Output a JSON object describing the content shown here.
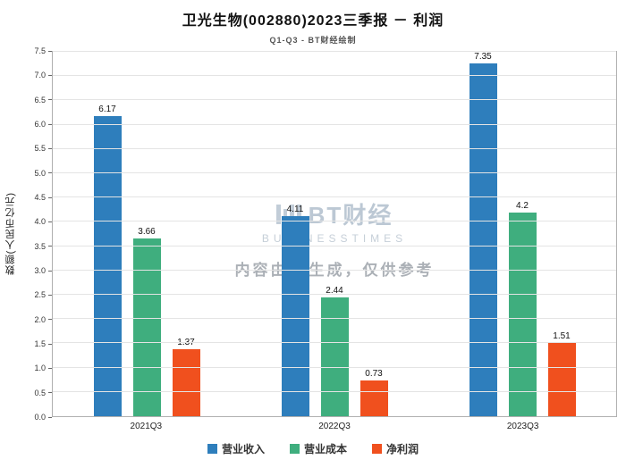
{
  "chart_data": {
    "type": "bar",
    "title": "卫光生物(002880)2023三季报 － 利润",
    "subtitle": "Q1-Q3 - BT财经绘制",
    "ylabel": "数额(人民币亿元)",
    "categories": [
      "2021Q3",
      "2022Q3",
      "2023Q3"
    ],
    "series": [
      {
        "name": "营业收入",
        "color": "#2e7ebc",
        "values": [
          6.17,
          4.11,
          7.35
        ]
      },
      {
        "name": "营业成本",
        "color": "#3fae7e",
        "values": [
          3.66,
          2.44,
          4.2
        ]
      },
      {
        "name": "净利润",
        "color": "#f0501e",
        "values": [
          1.37,
          0.73,
          1.51
        ]
      }
    ],
    "ylim": [
      0,
      7.5
    ],
    "ytick_step": 0.5,
    "grid": true,
    "legend_position": "bottom",
    "watermark": {
      "logo": "BT财经",
      "logo_sub": "BUSINESSTIMES",
      "note": "内容由AI生成，仅供参考"
    }
  }
}
